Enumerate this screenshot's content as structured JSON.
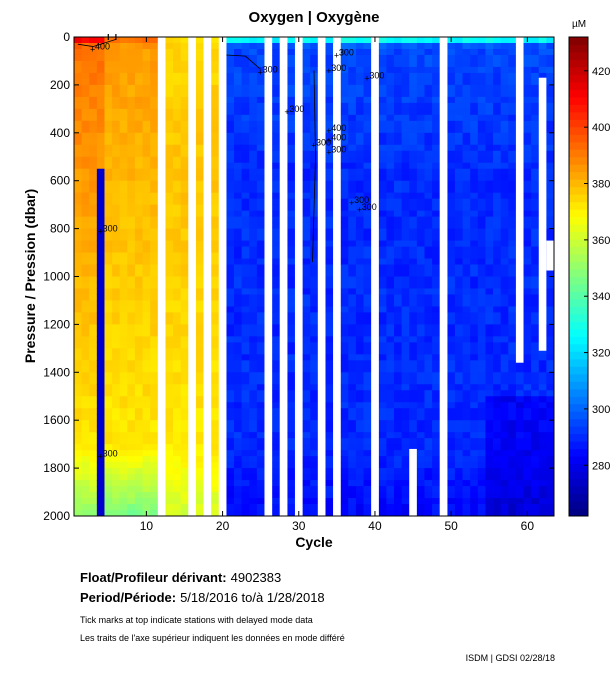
{
  "chart_data": {
    "type": "heatmap",
    "title": "Oxygen | Oxygène",
    "xlabel": "Cycle",
    "ylabel": "Pressure / Pression (dbar)",
    "xlim": [
      0.5,
      63.5
    ],
    "ylim": [
      2000,
      0
    ],
    "xticks": [
      10,
      20,
      30,
      40,
      50,
      60
    ],
    "yticks": [
      0,
      200,
      400,
      600,
      800,
      1000,
      1200,
      1400,
      1600,
      1800,
      2000
    ],
    "colorbar": {
      "unit": "µM",
      "range": [
        262,
        432
      ],
      "ticks": [
        280,
        300,
        320,
        340,
        360,
        380,
        400,
        420
      ]
    },
    "missing_cycles": [
      12,
      16,
      18,
      20,
      26,
      28,
      30,
      33,
      35,
      40,
      49
    ],
    "partial_gaps": [
      {
        "cycle": 45,
        "from": 1720,
        "to": 2000
      },
      {
        "cycle": 59,
        "from": 0,
        "to": 1360
      },
      {
        "cycle": 62,
        "from": 170,
        "to": 1310
      },
      {
        "cycle": 63.5,
        "from": 850,
        "to": 975
      }
    ],
    "profiles_summary": [
      {
        "cycles": "1-4",
        "surface": 420,
        "upper": 392,
        "mid": 385,
        "deep": 372,
        "bottom": 350
      },
      {
        "cycles": "5-11",
        "surface": 395,
        "upper": 385,
        "mid": 380,
        "deep": 372,
        "bottom": 345
      },
      {
        "cycles": "13-19",
        "surface": 372,
        "upper": 375,
        "mid": 378,
        "deep": 372,
        "bottom": 360
      },
      {
        "cycles": "20-63",
        "surface": 340,
        "upper": 295,
        "mid": 290,
        "deep": 290,
        "bottom": 284
      }
    ],
    "contours": [
      {
        "label": "400",
        "x": 3,
        "y": 40
      },
      {
        "label": "300",
        "x": 4,
        "y": 800
      },
      {
        "label": "300",
        "x": 4,
        "y": 1740
      },
      {
        "label": "300",
        "x": 25,
        "y": 135
      },
      {
        "label": "300",
        "x": 28.5,
        "y": 300
      },
      {
        "label": "300",
        "x": 32,
        "y": 440
      },
      {
        "label": "400",
        "x": 34,
        "y": 380
      },
      {
        "label": "400",
        "x": 34,
        "y": 420
      },
      {
        "label": "300",
        "x": 34,
        "y": 470
      },
      {
        "label": "300",
        "x": 34,
        "y": 130
      },
      {
        "label": "300",
        "x": 39,
        "y": 160
      },
      {
        "label": "300",
        "x": 35,
        "y": 65
      },
      {
        "label": "300",
        "x": 37,
        "y": 680
      },
      {
        "label": "300",
        "x": 38,
        "y": 710
      }
    ]
  },
  "info": {
    "float_label": "Float/Profileur dérivant:",
    "float_value": "4902383",
    "period_label": "Period/Période:",
    "period_value": "5/18/2016  to/à  1/28/2018",
    "note_en": "Tick marks at top indicate stations with delayed mode data",
    "note_fr": "Les traits de l'axe supérieur indiquent les données en mode différé",
    "credit": "ISDM | GDSI  02/28/18"
  }
}
